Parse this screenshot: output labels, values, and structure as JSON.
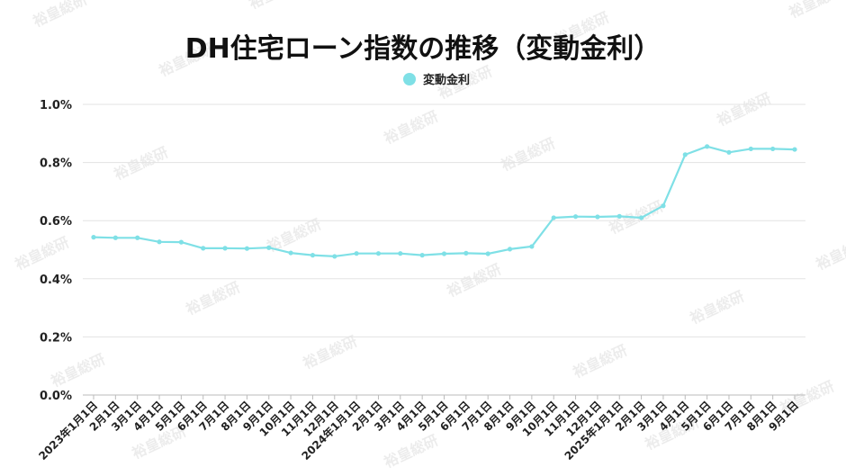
{
  "chart_data": {
    "type": "line",
    "title": "DH住宅ローン指数の推移（変動金利）",
    "xlabel": "",
    "ylabel": "",
    "ylim": [
      0,
      1.0
    ],
    "yticks": [
      "0.0%",
      "0.2%",
      "0.4%",
      "0.6%",
      "0.8%",
      "1.0%"
    ],
    "grid": true,
    "legend": "top-center",
    "watermark": "裕皇総研",
    "categories": [
      "2023年1月1日",
      "2月1日",
      "3月1日",
      "4月1日",
      "5月1日",
      "6月1日",
      "7月1日",
      "8月1日",
      "9月1日",
      "10月1日",
      "11月1日",
      "12月1日",
      "2024年1月1日",
      "2月1日",
      "3月1日",
      "4月1日",
      "5月1日",
      "6月1日",
      "7月1日",
      "8月1日",
      "9月1日",
      "10月1日",
      "11月1日",
      "12月1日",
      "2025年1月1日",
      "2月1日",
      "3月1日",
      "4月1日",
      "5月1日",
      "6月1日",
      "7月1日",
      "8月1日",
      "9月1日"
    ],
    "series": [
      {
        "name": "変動金利",
        "color": "#7fe0e6",
        "values": [
          0.543,
          0.541,
          0.541,
          0.527,
          0.526,
          0.505,
          0.505,
          0.504,
          0.507,
          0.489,
          0.481,
          0.477,
          0.487,
          0.487,
          0.487,
          0.481,
          0.486,
          0.488,
          0.486,
          0.502,
          0.511,
          0.61,
          0.614,
          0.613,
          0.615,
          0.61,
          0.651,
          0.827,
          0.855,
          0.835,
          0.847,
          0.847,
          0.845
        ]
      }
    ]
  }
}
